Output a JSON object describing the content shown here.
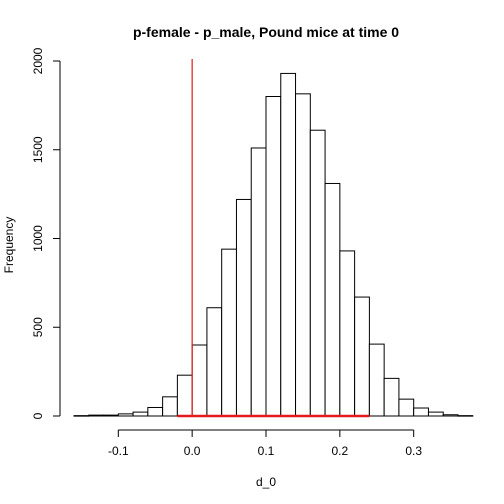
{
  "chart_data": {
    "type": "bar",
    "title": "p-female - p_male, Pound mice at time 0",
    "xlabel": "d_0",
    "ylabel": "Frequency",
    "bin_width": 0.02,
    "bins": [
      {
        "x0": -0.16,
        "x1": -0.14,
        "count": 2
      },
      {
        "x0": -0.14,
        "x1": -0.12,
        "count": 5
      },
      {
        "x0": -0.12,
        "x1": -0.1,
        "count": 5
      },
      {
        "x0": -0.1,
        "x1": -0.08,
        "count": 12
      },
      {
        "x0": -0.08,
        "x1": -0.06,
        "count": 22
      },
      {
        "x0": -0.06,
        "x1": -0.04,
        "count": 48
      },
      {
        "x0": -0.04,
        "x1": -0.02,
        "count": 108
      },
      {
        "x0": -0.02,
        "x1": 0.0,
        "count": 230
      },
      {
        "x0": 0.0,
        "x1": 0.02,
        "count": 400
      },
      {
        "x0": 0.02,
        "x1": 0.04,
        "count": 610
      },
      {
        "x0": 0.04,
        "x1": 0.06,
        "count": 940
      },
      {
        "x0": 0.06,
        "x1": 0.08,
        "count": 1220
      },
      {
        "x0": 0.08,
        "x1": 0.1,
        "count": 1510
      },
      {
        "x0": 0.1,
        "x1": 0.12,
        "count": 1800
      },
      {
        "x0": 0.12,
        "x1": 0.14,
        "count": 1930
      },
      {
        "x0": 0.14,
        "x1": 0.16,
        "count": 1815
      },
      {
        "x0": 0.16,
        "x1": 0.18,
        "count": 1610
      },
      {
        "x0": 0.18,
        "x1": 0.2,
        "count": 1310
      },
      {
        "x0": 0.2,
        "x1": 0.22,
        "count": 930
      },
      {
        "x0": 0.22,
        "x1": 0.24,
        "count": 670
      },
      {
        "x0": 0.24,
        "x1": 0.26,
        "count": 405
      },
      {
        "x0": 0.26,
        "x1": 0.28,
        "count": 212
      },
      {
        "x0": 0.28,
        "x1": 0.3,
        "count": 95
      },
      {
        "x0": 0.3,
        "x1": 0.32,
        "count": 45
      },
      {
        "x0": 0.32,
        "x1": 0.34,
        "count": 22
      },
      {
        "x0": 0.34,
        "x1": 0.36,
        "count": 7
      },
      {
        "x0": 0.36,
        "x1": 0.38,
        "count": 2
      }
    ],
    "xlim": [
      -0.16,
      0.36
    ],
    "ylim": [
      0,
      2000
    ],
    "x_ticks": [
      -0.1,
      0.0,
      0.1,
      0.2,
      0.3
    ],
    "x_tick_labels": [
      "-0.1",
      "0.0",
      "0.1",
      "0.2",
      "0.3"
    ],
    "y_ticks": [
      0,
      500,
      1000,
      1500,
      2000
    ],
    "y_tick_labels": [
      "0",
      "500",
      "1000",
      "1500",
      "2000"
    ],
    "reference_line": {
      "x": 0.0,
      "color": "#e41a1c"
    },
    "interval": {
      "x_start": -0.02,
      "x_end": 0.24,
      "color": "#e41a1c"
    },
    "bar_fill": "#ffffff",
    "bar_stroke": "#000000",
    "grid": false,
    "legend": "none"
  }
}
